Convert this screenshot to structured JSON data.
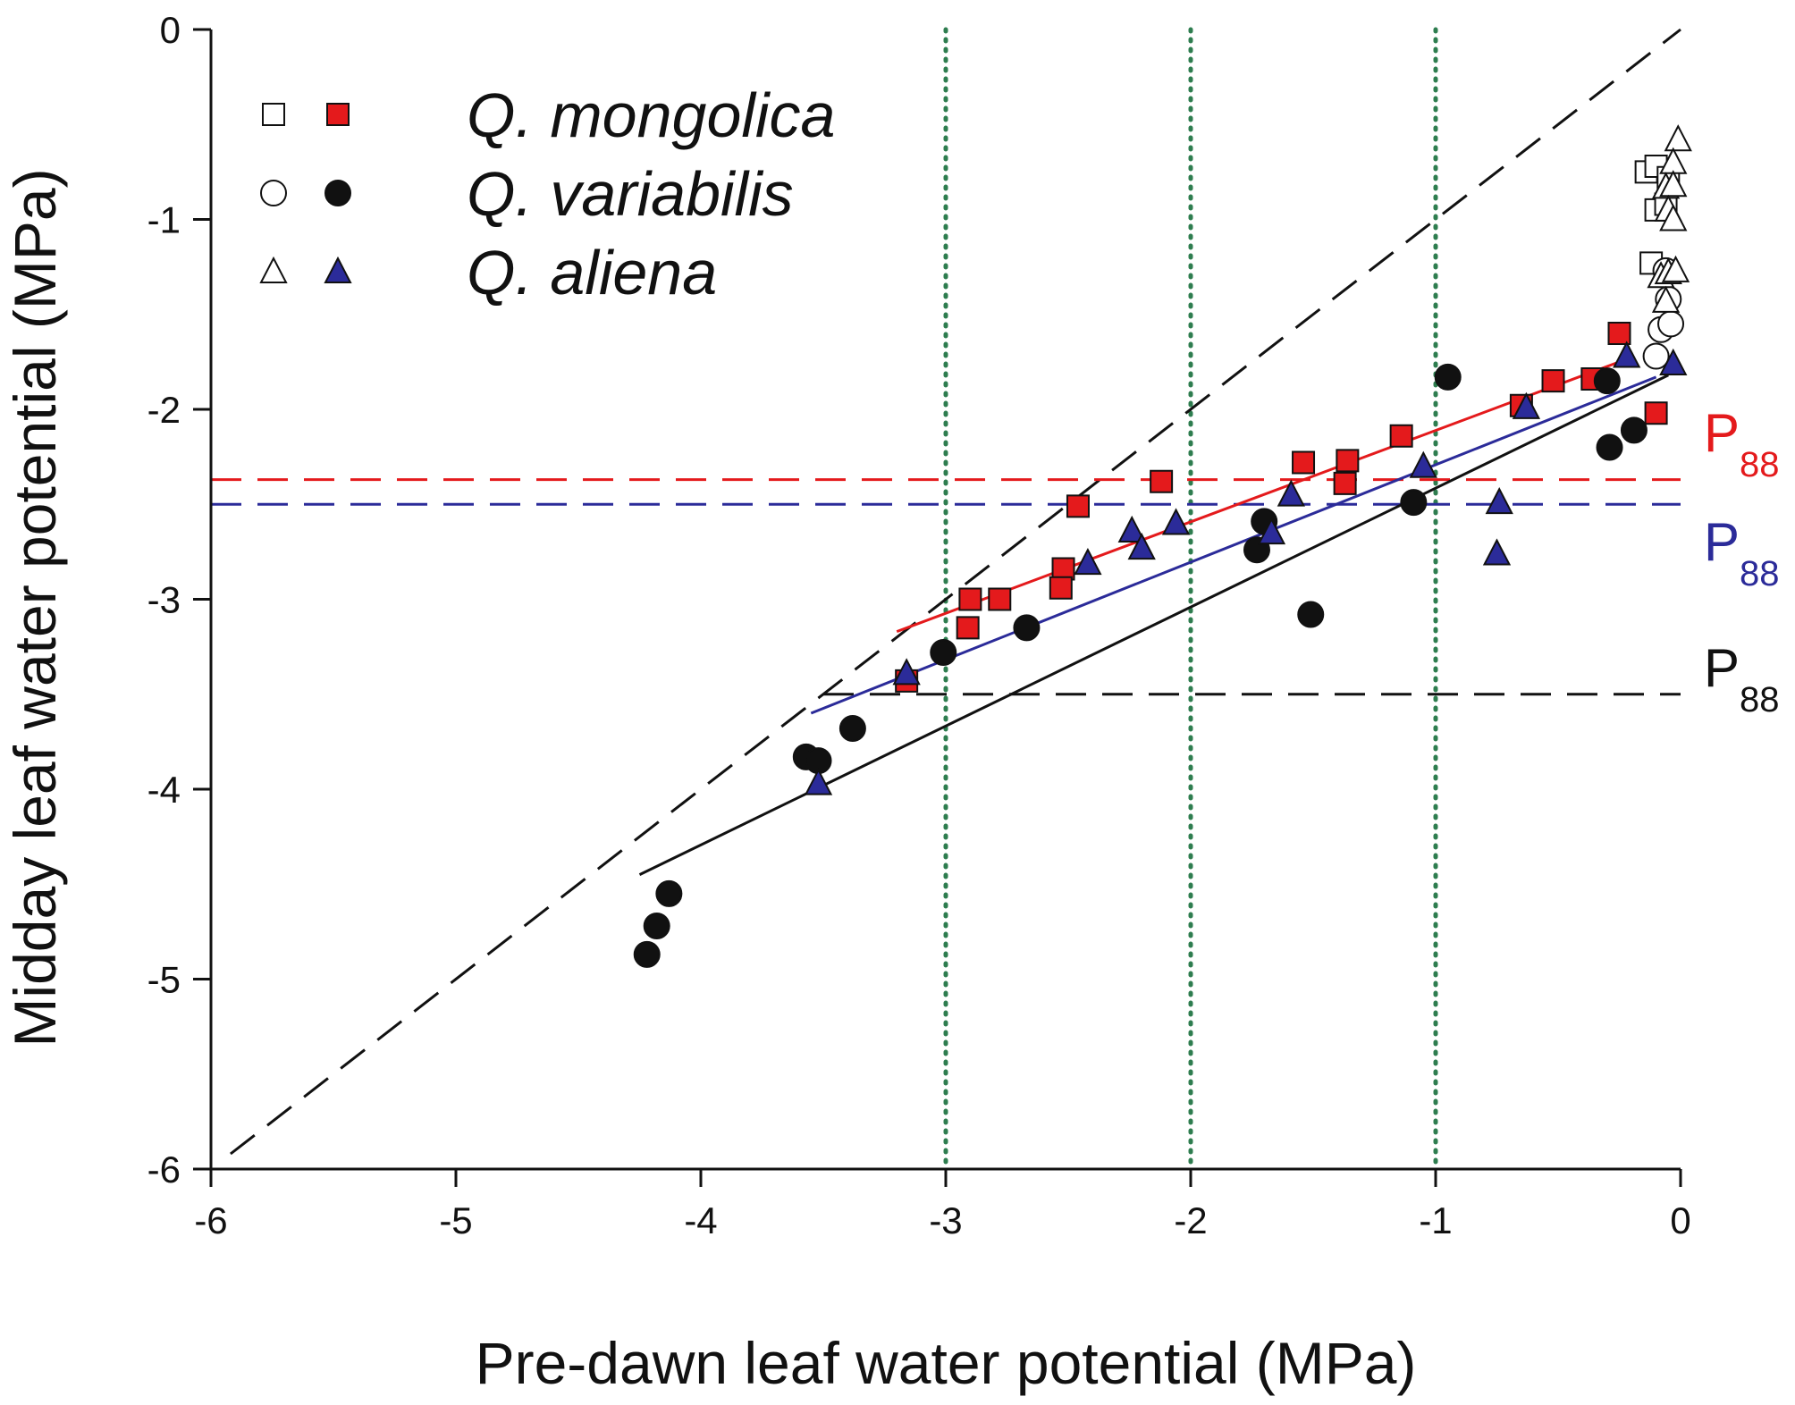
{
  "chart_data": {
    "type": "scatter",
    "xlabel": "Pre-dawn leaf water potential (MPa)",
    "ylabel": "Midday leaf water potential (MPa)",
    "xlim": [
      -6,
      0
    ],
    "ylim": [
      -6,
      0
    ],
    "x_ticks": [
      "-6",
      "-5",
      "-4",
      "-3",
      "-2",
      "-1",
      "0"
    ],
    "y_ticks": [
      "0",
      "-1",
      "-2",
      "-3",
      "-4",
      "-5",
      "-6"
    ],
    "grid": false,
    "legend_position": "top-left",
    "colors": {
      "mongolica": "#e41a1c",
      "variabilis": "#111111",
      "aliena": "#2b2b99",
      "dotted_lines": "#2e7d4f"
    },
    "series": [
      {
        "name": "Q. mongolica",
        "legend_label": "Q. mongolica",
        "marker": "square",
        "color": "#e41a1c",
        "open_points": [
          [
            -0.14,
            -0.75
          ],
          [
            -0.1,
            -0.72
          ],
          [
            -0.1,
            -0.95
          ],
          [
            -0.06,
            -0.92
          ],
          [
            -0.05,
            -0.78
          ],
          [
            -0.12,
            -1.23
          ]
        ],
        "filled_points": [
          [
            -3.16,
            -3.43
          ],
          [
            -2.9,
            -3.0
          ],
          [
            -2.91,
            -3.15
          ],
          [
            -2.78,
            -3.0
          ],
          [
            -2.52,
            -2.84
          ],
          [
            -2.53,
            -2.94
          ],
          [
            -2.46,
            -2.51
          ],
          [
            -2.12,
            -2.38
          ],
          [
            -1.54,
            -2.28
          ],
          [
            -1.36,
            -2.27
          ],
          [
            -1.37,
            -2.39
          ],
          [
            -1.14,
            -2.14
          ],
          [
            -0.65,
            -1.98
          ],
          [
            -0.52,
            -1.85
          ],
          [
            -0.36,
            -1.84
          ],
          [
            -0.25,
            -1.6
          ],
          [
            -0.1,
            -2.02
          ]
        ],
        "fit_line": [
          [
            -3.2,
            -3.17
          ],
          [
            -0.25,
            -1.75
          ]
        ]
      },
      {
        "name": "Q. variabilis",
        "legend_label": "Q. variabilis",
        "marker": "circle",
        "color": "#111111",
        "open_points": [
          [
            -0.08,
            -1.58
          ],
          [
            -0.05,
            -1.42
          ],
          [
            -0.04,
            -1.55
          ],
          [
            -0.06,
            -1.27
          ],
          [
            -0.1,
            -1.72
          ]
        ],
        "filled_points": [
          [
            -4.22,
            -4.87
          ],
          [
            -4.18,
            -4.72
          ],
          [
            -4.13,
            -4.55
          ],
          [
            -3.57,
            -3.83
          ],
          [
            -3.52,
            -3.85
          ],
          [
            -3.38,
            -3.68
          ],
          [
            -3.01,
            -3.28
          ],
          [
            -2.67,
            -3.15
          ],
          [
            -1.73,
            -2.74
          ],
          [
            -1.7,
            -2.59
          ],
          [
            -1.51,
            -3.08
          ],
          [
            -1.09,
            -2.49
          ],
          [
            -0.95,
            -1.83
          ],
          [
            -0.3,
            -1.85
          ],
          [
            -0.29,
            -2.2
          ],
          [
            -0.19,
            -2.11
          ]
        ],
        "fit_line": [
          [
            -4.25,
            -4.45
          ],
          [
            -0.05,
            -1.82
          ]
        ]
      },
      {
        "name": "Q. aliena",
        "legend_label": "Q. aliena",
        "marker": "triangle",
        "color": "#2b2b99",
        "open_points": [
          [
            -0.01,
            -0.58
          ],
          [
            -0.03,
            -0.7
          ],
          [
            -0.06,
            -0.83
          ],
          [
            -0.03,
            -0.82
          ],
          [
            -0.05,
            -0.95
          ],
          [
            -0.03,
            -1.0
          ],
          [
            -0.08,
            -1.3
          ],
          [
            -0.05,
            -1.28
          ],
          [
            -0.02,
            -1.27
          ],
          [
            -0.06,
            -1.43
          ]
        ],
        "filled_points": [
          [
            -3.52,
            -3.97
          ],
          [
            -3.16,
            -3.39
          ],
          [
            -2.42,
            -2.81
          ],
          [
            -2.24,
            -2.64
          ],
          [
            -2.2,
            -2.73
          ],
          [
            -2.06,
            -2.6
          ],
          [
            -1.67,
            -2.65
          ],
          [
            -1.59,
            -2.45
          ],
          [
            -1.05,
            -2.3
          ],
          [
            -0.74,
            -2.49
          ],
          [
            -0.75,
            -2.76
          ],
          [
            -0.63,
            -1.99
          ],
          [
            -0.22,
            -1.72
          ],
          [
            -0.03,
            -1.76
          ]
        ],
        "fit_line": [
          [
            -3.55,
            -3.6
          ],
          [
            -0.1,
            -1.83
          ]
        ]
      }
    ],
    "reference_lines": {
      "one_to_one": [
        [
          -5.92,
          -5.92
        ],
        [
          0,
          0
        ]
      ],
      "vertical_dotted_x": [
        -3,
        -2,
        -1
      ],
      "p88": [
        {
          "label": "P",
          "subscript": "88",
          "value": -2.37,
          "color": "#e41a1c",
          "x_start": -6
        },
        {
          "label": "P",
          "subscript": "88",
          "value": -2.5,
          "color": "#2b2b99",
          "x_start": -6
        },
        {
          "label": "P",
          "subscript": "88",
          "value": -3.5,
          "color": "#111111",
          "x_start": -3.5
        }
      ]
    }
  }
}
